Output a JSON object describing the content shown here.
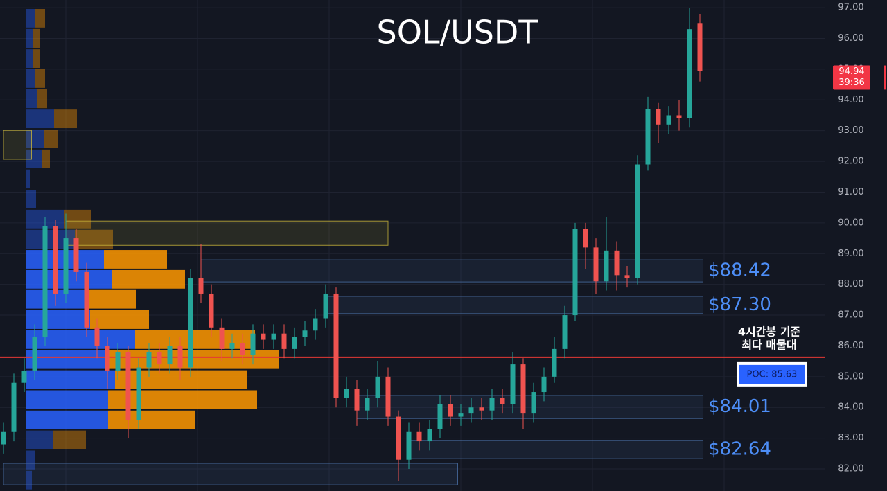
{
  "chart_data": {
    "type": "candlestick",
    "title": "SOL/USDT",
    "ylim": [
      81.28,
      97.25
    ],
    "yticks": [
      {
        "value": 82,
        "label": "82.00"
      },
      {
        "value": 83,
        "label": "83.00"
      },
      {
        "value": 84,
        "label": "84.00"
      },
      {
        "value": 85,
        "label": "85.00"
      },
      {
        "value": 86,
        "label": "86.00"
      },
      {
        "value": 87,
        "label": "87.00"
      },
      {
        "value": 88,
        "label": "88.00"
      },
      {
        "value": 89,
        "label": "89.00"
      },
      {
        "value": 90,
        "label": "90.00"
      },
      {
        "value": 91,
        "label": "91.00"
      },
      {
        "value": 92,
        "label": "92.00"
      },
      {
        "value": 93,
        "label": "93.00"
      },
      {
        "value": 94,
        "label": "94.00"
      },
      {
        "value": 95,
        "label": "95.00"
      },
      {
        "value": 96,
        "label": "96.00"
      },
      {
        "value": 97,
        "label": "97.00"
      }
    ],
    "grid": true,
    "up_color": "#26a69a",
    "down_color": "#ef5350",
    "open": [
      82.8,
      83.2,
      84.8,
      85.2,
      86.3,
      89.9,
      87.7,
      89.5,
      88.4,
      86.6,
      86.0,
      85.2,
      85.8,
      83.6,
      85.3,
      85.8,
      85.4,
      86.0,
      85.3,
      88.2,
      87.7,
      86.6,
      85.9,
      86.1,
      85.7,
      86.4,
      86.2,
      86.4,
      85.9,
      86.3,
      86.5,
      86.9,
      87.7,
      84.3,
      84.6,
      83.9,
      84.3,
      85.0,
      83.7,
      82.3,
      83.2,
      82.9,
      83.3,
      84.1,
      83.7,
      83.8,
      84.0,
      83.9,
      84.3,
      84.1,
      85.4,
      83.8,
      84.5,
      85.0,
      85.9,
      87.0,
      89.8,
      89.2,
      88.1,
      89.1,
      88.3,
      88.2,
      91.9,
      93.7,
      93.2,
      93.5,
      93.4,
      96.5
    ],
    "high": [
      83.5,
      85.1,
      85.6,
      86.7,
      90.2,
      90.1,
      90.3,
      89.8,
      88.7,
      86.9,
      86.3,
      86.1,
      86.0,
      85.6,
      86.1,
      86.1,
      86.3,
      86.3,
      88.5,
      89.3,
      88.0,
      86.9,
      86.4,
      86.4,
      86.7,
      86.7,
      86.7,
      86.7,
      86.6,
      86.8,
      87.2,
      88.0,
      87.9,
      85.0,
      84.9,
      84.6,
      85.5,
      85.3,
      83.9,
      83.5,
      83.5,
      83.6,
      84.4,
      84.4,
      84.1,
      84.3,
      84.3,
      84.6,
      84.6,
      85.8,
      85.6,
      84.8,
      85.3,
      86.3,
      87.3,
      90.0,
      90.0,
      89.5,
      90.2,
      89.4,
      88.6,
      92.2,
      94.1,
      93.9,
      93.8,
      94.0,
      97.0,
      96.8
    ],
    "low": [
      82.5,
      82.9,
      84.5,
      84.9,
      86.0,
      87.3,
      87.4,
      88.1,
      86.3,
      85.6,
      84.6,
      84.9,
      83.0,
      83.3,
      85.0,
      85.1,
      85.1,
      84.9,
      85.0,
      87.4,
      86.3,
      85.5,
      85.6,
      85.4,
      85.4,
      85.9,
      85.9,
      85.6,
      85.6,
      86.0,
      86.2,
      86.6,
      84.0,
      84.0,
      83.4,
      83.6,
      84.0,
      83.4,
      81.6,
      82.0,
      82.6,
      82.6,
      83.0,
      83.4,
      83.4,
      83.5,
      83.6,
      83.6,
      83.8,
      83.8,
      83.3,
      83.5,
      84.2,
      84.8,
      85.6,
      86.8,
      88.5,
      87.7,
      87.8,
      87.8,
      87.9,
      88.0,
      91.7,
      92.6,
      92.9,
      93.0,
      93.1,
      94.6
    ],
    "close": [
      83.2,
      84.8,
      85.2,
      86.3,
      89.9,
      87.7,
      89.5,
      88.4,
      86.6,
      86.0,
      85.2,
      85.8,
      83.6,
      85.3,
      85.8,
      85.4,
      86.0,
      85.3,
      88.2,
      87.7,
      86.6,
      85.9,
      86.1,
      85.7,
      86.4,
      86.2,
      86.4,
      85.9,
      86.3,
      86.5,
      86.9,
      87.7,
      84.3,
      84.6,
      83.9,
      84.3,
      85.0,
      83.7,
      82.3,
      83.2,
      82.9,
      83.3,
      84.1,
      83.7,
      83.8,
      84.0,
      83.9,
      84.3,
      84.1,
      85.4,
      83.8,
      84.5,
      85.0,
      85.9,
      87.0,
      89.8,
      89.2,
      88.1,
      89.1,
      88.3,
      88.2,
      91.9,
      93.7,
      93.2,
      93.5,
      93.4,
      96.3,
      94.94
    ],
    "volume_profile": {
      "bins": [
        96.98,
        96.33,
        95.67,
        95.02,
        94.37,
        93.71,
        93.06,
        92.41,
        91.76,
        91.1,
        90.45,
        89.8,
        89.14,
        88.49,
        87.84,
        87.19,
        86.53,
        85.88,
        85.23,
        84.58,
        83.92,
        83.27,
        82.62,
        81.96,
        81.31
      ],
      "buy": [
        12,
        10,
        10,
        12,
        15,
        40,
        25,
        22,
        5,
        14,
        55,
        70,
        112,
        124,
        88,
        92,
        157,
        120,
        128,
        118,
        118,
        38,
        12,
        8
      ],
      "sell": [
        15,
        10,
        10,
        15,
        15,
        33,
        20,
        12,
        0,
        0,
        38,
        55,
        91,
        105,
        70,
        85,
        173,
        245,
        190,
        215,
        125,
        48,
        0,
        0
      ],
      "xlim": [
        0,
        1200
      ],
      "buy_color": "#2962ff",
      "sell_color": "#ff9800"
    },
    "zones": [
      {
        "high": 90.06,
        "low": 89.27,
        "start": 6,
        "end": 37,
        "color": "#c8b43a"
      },
      {
        "high": 93.01,
        "low": 92.07,
        "start": 0,
        "end": 2.7,
        "color": "#c8b43a"
      },
      {
        "high": 82.18,
        "low": 81.48,
        "start": 0,
        "end": 43.7,
        "color": "#4a6fa5"
      },
      {
        "high": 88.8,
        "low": 88.08,
        "start": 19,
        "end": 67.3,
        "color": "#4a6fa5",
        "label": {
          "value": 88.42,
          "label": "$88.42"
        }
      },
      {
        "high": 87.61,
        "low": 87.05,
        "start": 31,
        "end": 67.3,
        "color": "#4a6fa5",
        "label": {
          "value": 87.3,
          "label": "$87.30"
        }
      },
      {
        "high": 84.39,
        "low": 83.64,
        "start": 34,
        "end": 67.3,
        "color": "#4a6fa5",
        "label": {
          "value": 84.01,
          "label": "$84.01"
        }
      },
      {
        "high": 82.92,
        "low": 82.34,
        "start": 39,
        "end": 67.3,
        "color": "#4a6fa5",
        "label": {
          "value": 82.64,
          "label": "$82.64"
        }
      }
    ],
    "poc": {
      "value": 85.63,
      "label": "POC: 85.63",
      "color": "#e53935"
    },
    "annotation": [
      "4시간봉 기준",
      "최다 매물대"
    ],
    "last_price": {
      "value": 94.94,
      "countdown": "39:36",
      "color": "#f23645"
    }
  }
}
